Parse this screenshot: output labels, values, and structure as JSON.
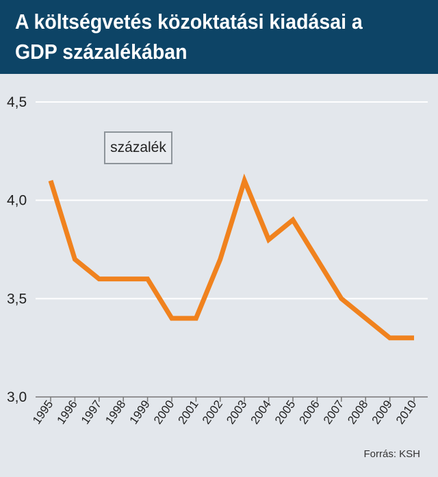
{
  "header": {
    "title": "A költségvetés közoktatási kiadásai a GDP százalékában"
  },
  "legend": {
    "label": "százalék"
  },
  "source": "Forrás: KSH",
  "colors": {
    "header_bg": "#0d4466",
    "line": "#f0821e",
    "background": "#e3e7ec",
    "grid": "#ffffff"
  },
  "chart_data": {
    "type": "line",
    "title": "A költségvetés közoktatási kiadásai a GDP százalékában",
    "xlabel": "",
    "ylabel": "százalék",
    "ylim": [
      3.0,
      4.5
    ],
    "yticks": [
      "3,0",
      "3,5",
      "4,0",
      "4,5"
    ],
    "ytick_values": [
      3.0,
      3.5,
      4.0,
      4.5
    ],
    "grid": true,
    "categories": [
      "1995",
      "1996",
      "1997",
      "1998",
      "1999",
      "2000",
      "2001",
      "2002",
      "2003",
      "2004",
      "2005",
      "2006",
      "2007",
      "2008",
      "2009",
      "2010"
    ],
    "series": [
      {
        "name": "százalék",
        "values": [
          4.1,
          3.7,
          3.6,
          3.6,
          3.6,
          3.4,
          3.4,
          3.7,
          4.1,
          3.8,
          3.9,
          3.7,
          3.5,
          3.4,
          3.3,
          3.3
        ]
      }
    ]
  }
}
